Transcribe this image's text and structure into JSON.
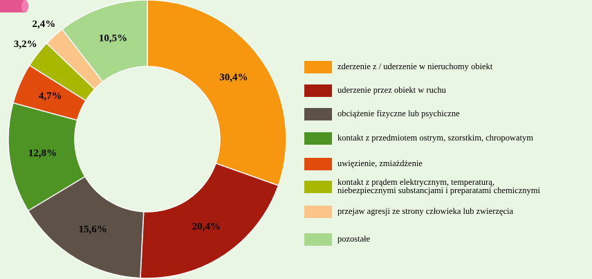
{
  "chart_data": {
    "type": "donut",
    "categories": [
      "zderzenie z / uderzenie w nieruchomy obiekt",
      "uderzenie przez obiekt w ruchu",
      "obciążenie fizyczne lub psychiczne",
      "kontakt z przedmiotem ostrym, szorstkim, chropowatym",
      "uwięzienie, zmiażdżenie",
      "kontakt z prądem elektrycznym, temperaturą,\nniebezpiecznymi substancjami i preparatami chemicznymi",
      "przejaw agresji ze strony człowieka lub zwierzęcia",
      "pozostałe"
    ],
    "values": [
      30.4,
      20.4,
      15.6,
      12.8,
      4.7,
      3.2,
      2.4,
      10.5
    ],
    "value_labels": [
      "30,4%",
      "20,4%",
      "15,6%",
      "12,8%",
      "4,7%",
      "3,2%",
      "2,4%",
      "10,5%"
    ],
    "colors": [
      "#f7960f",
      "#a51c0e",
      "#5e5148",
      "#4e9425",
      "#e14b0b",
      "#a8b800",
      "#fbc58a",
      "#a8d88c"
    ],
    "legend": "right"
  }
}
